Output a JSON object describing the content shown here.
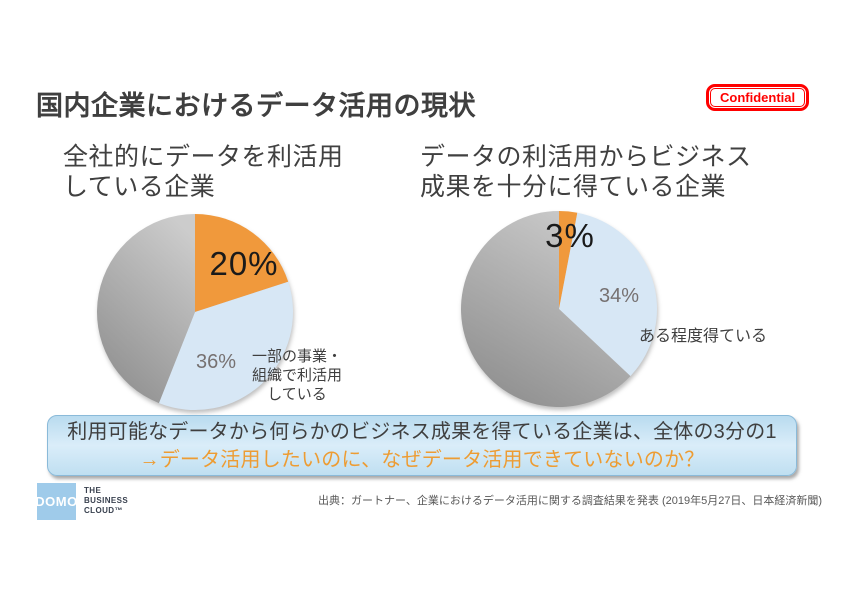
{
  "slide": {
    "title": "国内企業におけるデータ活用の現状",
    "confidential": "Confidential"
  },
  "colors": {
    "orange": "#F0993C",
    "light_blue": "#D7E7F5",
    "gray_light": "#CCCCCC",
    "gray_dark": "#8F8F8F",
    "title_text": "#3F3F3F",
    "badge_red": "#FF0000",
    "percent_dark": "#1A1A1A",
    "percent_gray": "#767171",
    "callout_fill": "#C9E2F4",
    "callout_border": "#8ABAD9",
    "callout_orange_text": "#ED9C33",
    "logo_blue": "#9FCBEA",
    "logo_text_navy": "#39414F",
    "source_gray": "#595959"
  },
  "chart_data": [
    {
      "type": "pie",
      "title": "全社的にデータを利活用\nしている企業",
      "start_angle_deg": 0,
      "direction": "clockwise",
      "slices": [
        {
          "label": "20%",
          "value": 20,
          "color_key": "orange",
          "annotation": ""
        },
        {
          "label": "36%",
          "value": 36,
          "color_key": "light_blue",
          "annotation": "一部の事業・\n組織で利活用\nしている"
        },
        {
          "label": "",
          "value": 44,
          "color_key": "gray",
          "annotation": ""
        }
      ]
    },
    {
      "type": "pie",
      "title": "データの利活用からビジネス\n成果を十分に得ている企業",
      "start_angle_deg": 0,
      "direction": "clockwise",
      "slices": [
        {
          "label": "3%",
          "value": 3,
          "color_key": "orange",
          "annotation": ""
        },
        {
          "label": "34%",
          "value": 34,
          "color_key": "light_blue",
          "annotation": "ある程度得ている"
        },
        {
          "label": "",
          "value": 63,
          "color_key": "gray",
          "annotation": ""
        }
      ]
    }
  ],
  "callout": {
    "line1": "利用可能なデータから何らかのビジネス成果を得ている企業は、全体の3分の1",
    "line2": "→データ活用したいのに、なぜデータ活用できていないのか？"
  },
  "footer": {
    "logo_text": "DOMO",
    "tagline": "THE\nBUSINESS\nCLOUD™",
    "source": "出典：ガートナー、企業におけるデータ活用に関する調査結果を発表 (2019年5月27日、日本経済新聞)"
  }
}
